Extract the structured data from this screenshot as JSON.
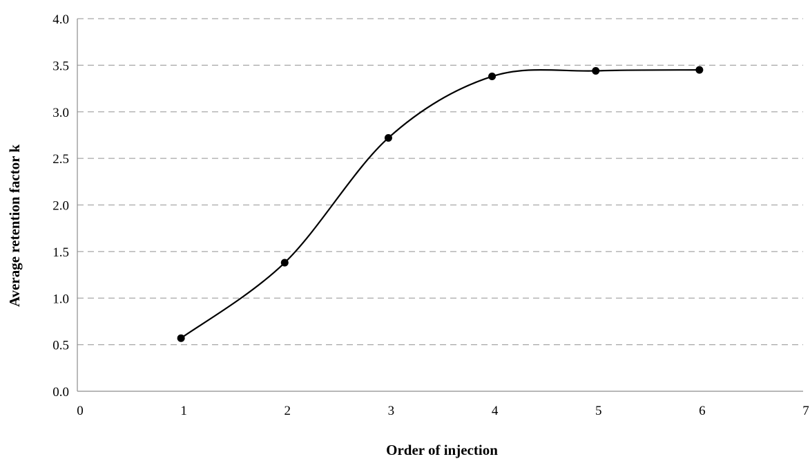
{
  "chart_data": {
    "type": "scatter",
    "title": "",
    "xlabel": "Order of injection",
    "ylabel": "Average retention factor k",
    "xlim": [
      0,
      7
    ],
    "ylim": [
      0.0,
      4.0
    ],
    "x_ticks": [
      "0",
      "1",
      "2",
      "3",
      "4",
      "5",
      "6",
      "7"
    ],
    "y_ticks": [
      "0.0",
      "0.5",
      "1.0",
      "1.5",
      "2.0",
      "2.5",
      "3.0",
      "3.5",
      "4.0"
    ],
    "grid": "horizontal-dashed",
    "legend": "none",
    "smooth_line": true,
    "series": [
      {
        "x": [
          1,
          2,
          3,
          4,
          5,
          6
        ],
        "y": [
          0.57,
          1.38,
          2.72,
          3.38,
          3.44,
          3.45
        ],
        "color": "#000000"
      }
    ]
  }
}
